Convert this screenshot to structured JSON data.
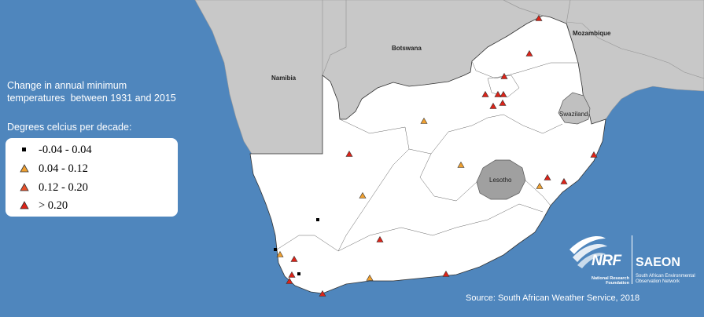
{
  "map": {
    "title_line_1": "Change in annual minimum",
    "title_line_2": "temperatures  between 1931 and 2015",
    "subtitle": "Degrees celcius per decade:",
    "countries": {
      "namibia": "Namibia",
      "botswana": "Botswana",
      "mozambique": "Mozambique",
      "swaziland": "Swaziland",
      "lesotho": "Lesotho"
    },
    "legend": [
      {
        "label": "-0.04 - 0.04",
        "symbol": "square",
        "color": "#000000"
      },
      {
        "label": "0.04 - 0.12",
        "symbol": "triangle",
        "color": "#f0a030"
      },
      {
        "label": "0.12 - 0.20",
        "symbol": "triangle",
        "color": "#e8502a"
      },
      {
        "label": "> 0.20",
        "symbol": "triangle",
        "color": "#dd2318"
      }
    ],
    "logo": {
      "nrf": "NRF",
      "nrf_sub_1": "National Research",
      "nrf_sub_2": "Foundation",
      "saeon": "SAEON",
      "saeon_sub_1": "South African Environmental",
      "saeon_sub_2": "Observation Network"
    },
    "source": "Source: South African Weather Service, 2018",
    "colors": {
      "ocean": "#4f86bd",
      "neighbour_land": "#c8c8c8",
      "south_africa": "#ffffff",
      "lesotho": "#a0a0a0"
    }
  }
}
